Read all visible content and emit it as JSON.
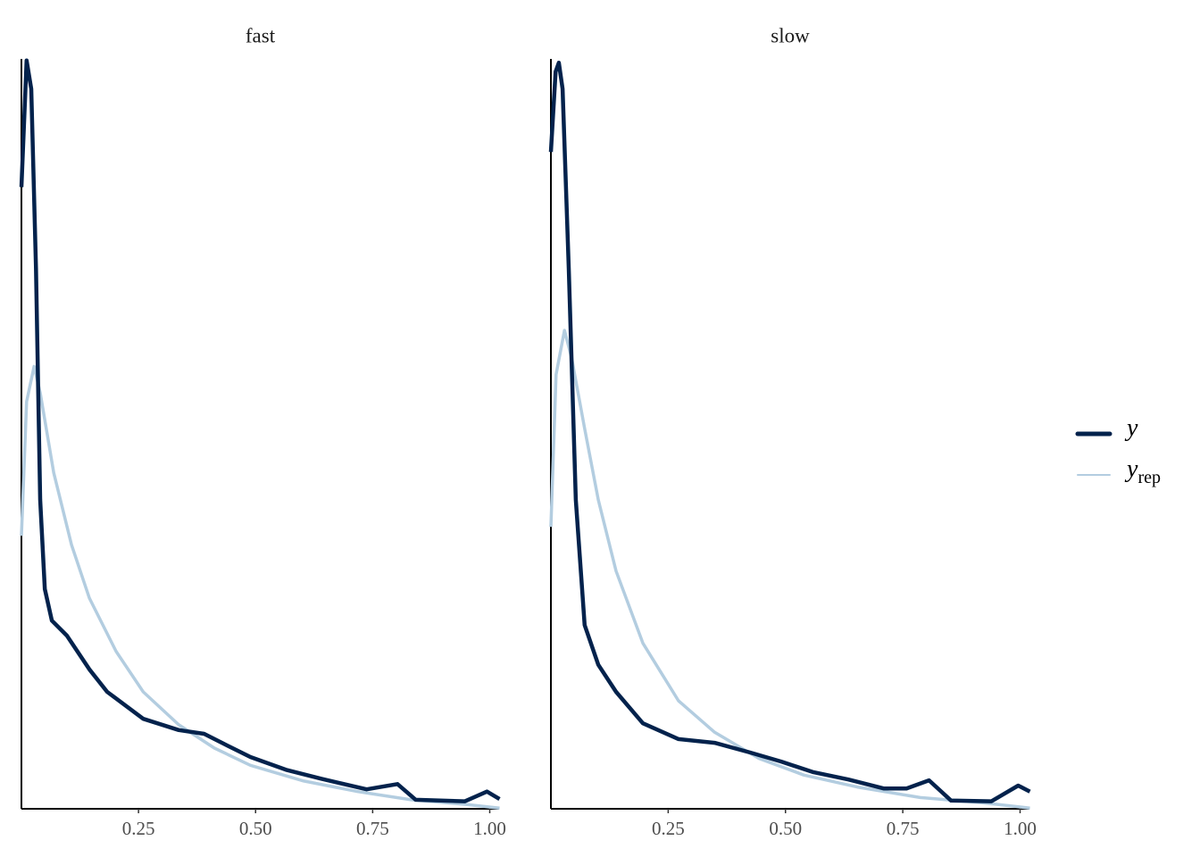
{
  "chart_data": [
    {
      "type": "line",
      "title": "fast",
      "xlim": [
        0,
        1.02
      ],
      "ylim": [
        0,
        10
      ],
      "xticks": [
        0.25,
        {
          "value": 0.5,
          "label": "0.50"
        },
        0.75,
        {
          "value": 1,
          "label": "1.00"
        }
      ],
      "series": [
        {
          "name": "yrep",
          "color": "#b3cde0",
          "x": [
            0,
            0.011,
            0.027,
            0.04,
            0.069,
            0.107,
            0.145,
            0.202,
            0.26,
            0.336,
            0.412,
            0.489,
            0.603,
            0.718,
            0.832,
            0.947,
            1.021
          ],
          "values": [
            3.64,
            5.43,
            5.9,
            5.55,
            4.48,
            3.52,
            2.81,
            2.1,
            1.56,
            1.12,
            0.81,
            0.58,
            0.37,
            0.23,
            0.12,
            0.06,
            0.01
          ]
        },
        {
          "name": "y",
          "color": "#03224c",
          "x": [
            0,
            0.011,
            0.021,
            0.031,
            0.04,
            0.05,
            0.065,
            0.097,
            0.145,
            0.183,
            0.26,
            0.336,
            0.39,
            0.431,
            0.489,
            0.565,
            0.641,
            0.737,
            0.803,
            0.842,
            0.947,
            0.994,
            1.021
          ],
          "values": [
            8.29,
            9.98,
            9.6,
            7.21,
            4.12,
            2.93,
            2.51,
            2.31,
            1.86,
            1.56,
            1.2,
            1.05,
            1.0,
            0.87,
            0.69,
            0.52,
            0.4,
            0.26,
            0.33,
            0.12,
            0.1,
            0.23,
            0.13
          ]
        }
      ]
    },
    {
      "type": "line",
      "title": "slow",
      "xlim": [
        0,
        1.02
      ],
      "ylim": [
        0,
        10
      ],
      "xticks": [
        0.25,
        {
          "value": 0.5,
          "label": "0.50"
        },
        0.75,
        {
          "value": 1,
          "label": "1.00"
        }
      ],
      "series": [
        {
          "name": "yrep",
          "color": "#b3cde0",
          "x": [
            0,
            0.011,
            0.029,
            0.044,
            0.072,
            0.101,
            0.139,
            0.196,
            0.272,
            0.349,
            0.444,
            0.539,
            0.653,
            0.787,
            0.92,
            1.021
          ],
          "values": [
            3.76,
            5.79,
            6.38,
            6.02,
            5.07,
            4.12,
            3.17,
            2.21,
            1.44,
            1.02,
            0.67,
            0.45,
            0.29,
            0.15,
            0.08,
            0.01
          ]
        },
        {
          "name": "y",
          "color": "#03224c",
          "x": [
            0,
            0.01,
            0.017,
            0.025,
            0.038,
            0.053,
            0.072,
            0.101,
            0.139,
            0.196,
            0.272,
            0.349,
            0.425,
            0.491,
            0.558,
            0.634,
            0.71,
            0.758,
            0.806,
            0.853,
            0.939,
            0.996,
            1.021
          ],
          "values": [
            8.76,
            9.83,
            9.95,
            9.6,
            7.21,
            4.12,
            2.45,
            1.92,
            1.56,
            1.14,
            0.93,
            0.88,
            0.75,
            0.63,
            0.49,
            0.39,
            0.27,
            0.27,
            0.38,
            0.11,
            0.1,
            0.31,
            0.23
          ]
        }
      ]
    }
  ]
}
